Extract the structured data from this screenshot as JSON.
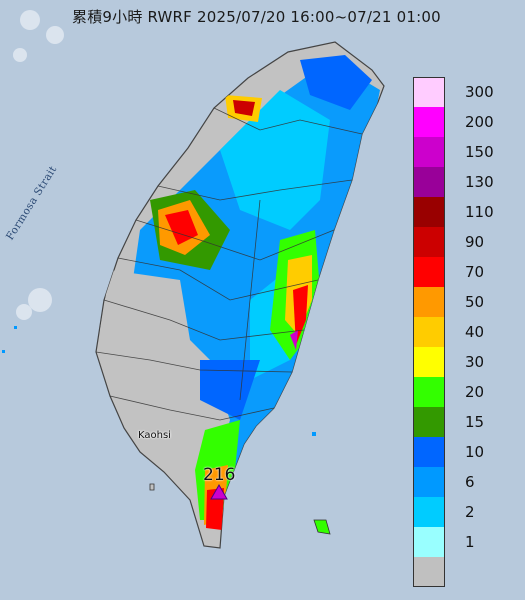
{
  "title": "累積9小時 RWRF 2025/07/20 16:00~07/21 01:00",
  "labels": {
    "strait": "Formosa Strait",
    "city": "Kaohsi",
    "max_value": "216"
  },
  "legend": [
    {
      "label": "300",
      "color": "#ffccff"
    },
    {
      "label": "200",
      "color": "#ff00ff"
    },
    {
      "label": "150",
      "color": "#cc00cc"
    },
    {
      "label": "130",
      "color": "#990099"
    },
    {
      "label": "110",
      "color": "#990000"
    },
    {
      "label": "90",
      "color": "#cc0000"
    },
    {
      "label": "70",
      "color": "#ff0000"
    },
    {
      "label": "50",
      "color": "#ff9900"
    },
    {
      "label": "40",
      "color": "#ffcc00"
    },
    {
      "label": "30",
      "color": "#ffff00"
    },
    {
      "label": "20",
      "color": "#33ff00"
    },
    {
      "label": "15",
      "color": "#339900"
    },
    {
      "label": "10",
      "color": "#0066ff"
    },
    {
      "label": "6",
      "color": "#0099ff"
    },
    {
      "label": "2",
      "color": "#00ccff"
    },
    {
      "label": "1",
      "color": "#99ffff"
    },
    {
      "label": "",
      "color": "#c0c0c0"
    }
  ]
}
